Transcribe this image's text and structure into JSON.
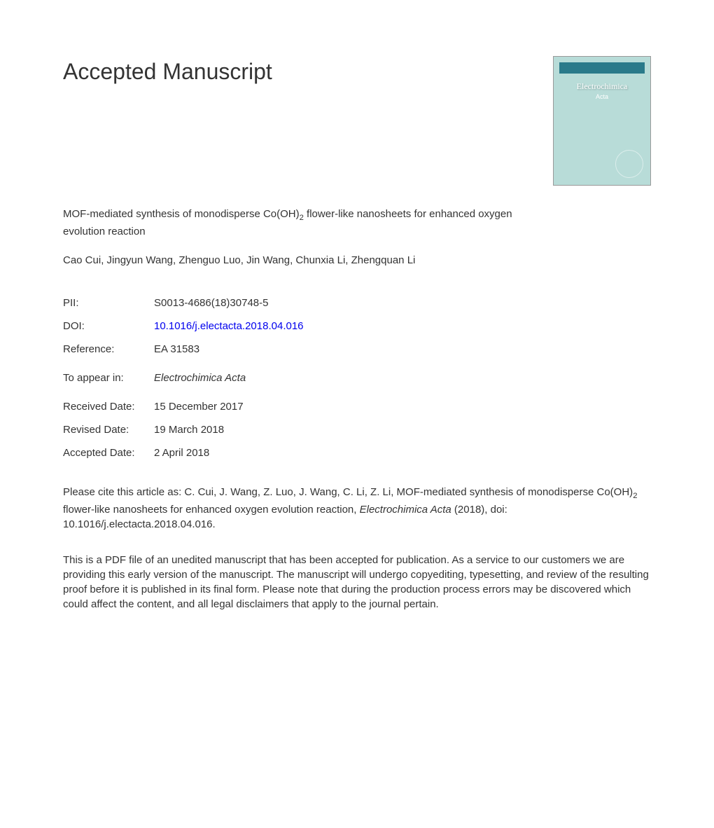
{
  "heading": "Accepted Manuscript",
  "article": {
    "title_part1": "MOF-mediated synthesis of monodisperse Co(OH)",
    "title_sub": "2",
    "title_part2": " flower-like nanosheets for enhanced oxygen evolution reaction",
    "authors": "Cao Cui, Jingyun Wang, Zhenguo Luo, Jin Wang, Chunxia Li, Zhengquan Li"
  },
  "metadata": {
    "pii_label": "PII:",
    "pii_value": "S0013-4686(18)30748-5",
    "doi_label": "DOI:",
    "doi_value": "10.1016/j.electacta.2018.04.016",
    "reference_label": "Reference:",
    "reference_value": "EA 31583",
    "appear_label": "To appear in:",
    "appear_value": "Electrochimica Acta",
    "received_label": "Received Date:",
    "received_value": "15 December 2017",
    "revised_label": "Revised Date:",
    "revised_value": "19 March 2018",
    "accepted_label": "Accepted Date:",
    "accepted_value": "2 April 2018"
  },
  "citation": {
    "part1": "Please cite this article as: C. Cui, J. Wang, Z. Luo, J. Wang, C. Li, Z. Li, MOF-mediated synthesis of monodisperse Co(OH)",
    "sub": "2",
    "part2": " flower-like nanosheets for enhanced oxygen evolution reaction, ",
    "journal": "Electrochimica Acta",
    "part3": " (2018), doi: 10.1016/j.electacta.2018.04.016."
  },
  "disclaimer": "This is a PDF file of an unedited manuscript that has been accepted for publication. As a service to our customers we are providing this early version of the manuscript. The manuscript will undergo copyediting, typesetting, and review of the resulting proof before it is published in its final form. Please note that during the production process errors may be discovered which could affect the content, and all legal disclaimers that apply to the journal pertain.",
  "cover": {
    "journal_name": "Electrochimica",
    "journal_sub": "Acta"
  },
  "colors": {
    "text": "#333333",
    "link": "#0000ee",
    "cover_bg": "#b8dcd8",
    "cover_header": "#2a7a8a"
  }
}
